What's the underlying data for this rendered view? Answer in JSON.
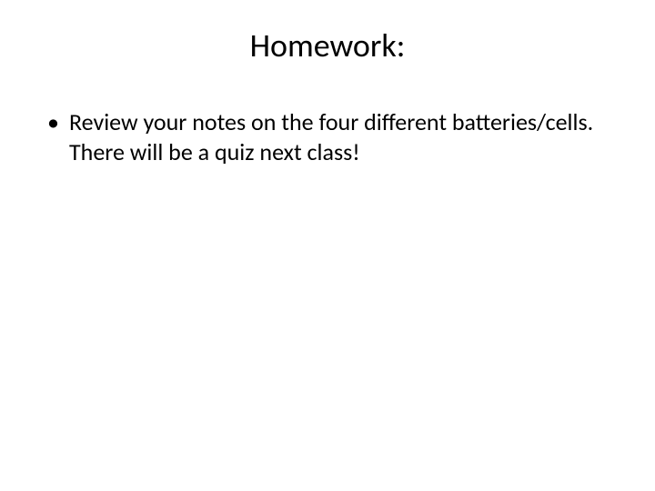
{
  "slide": {
    "title": "Homework:",
    "bullets": [
      "Review your notes on the four different batteries/cells. There will be a quiz next class!"
    ],
    "colors": {
      "background": "#ffffff",
      "text": "#000000"
    },
    "typography": {
      "title_fontsize": 36,
      "body_fontsize": 26,
      "font_family": "Calibri"
    }
  }
}
